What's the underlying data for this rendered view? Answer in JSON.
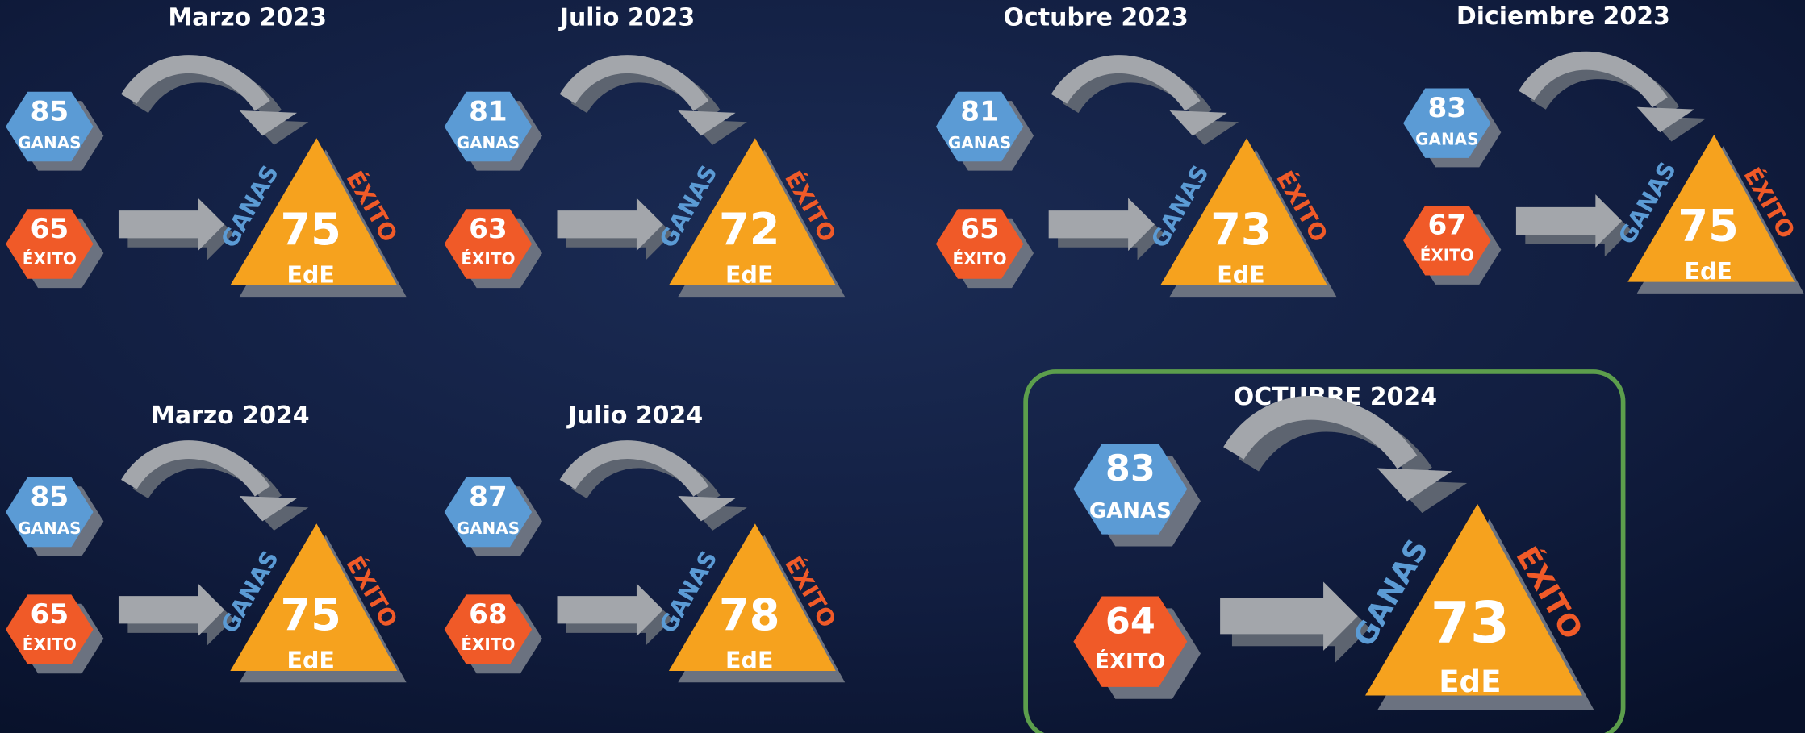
{
  "labels": {
    "ganas": "GANAS",
    "exito": "ÉXITO",
    "ede": "EdE"
  },
  "panels": [
    {
      "title": "Marzo 2023",
      "ganas": 85,
      "exito": 65,
      "ede": 75
    },
    {
      "title": "Julio 2023",
      "ganas": 81,
      "exito": 63,
      "ede": 72
    },
    {
      "title": "Octubre 2023",
      "ganas": 81,
      "exito": 65,
      "ede": 73
    },
    {
      "title": "Diciembre 2023",
      "ganas": 83,
      "exito": 67,
      "ede": 75
    },
    {
      "title": "Marzo 2024",
      "ganas": 85,
      "exito": 65,
      "ede": 75
    },
    {
      "title": "Julio 2024",
      "ganas": 87,
      "exito": 68,
      "ede": 78
    },
    {
      "title": "OCTUBRE 2024",
      "ganas": 83,
      "exito": 64,
      "ede": 73
    }
  ]
}
